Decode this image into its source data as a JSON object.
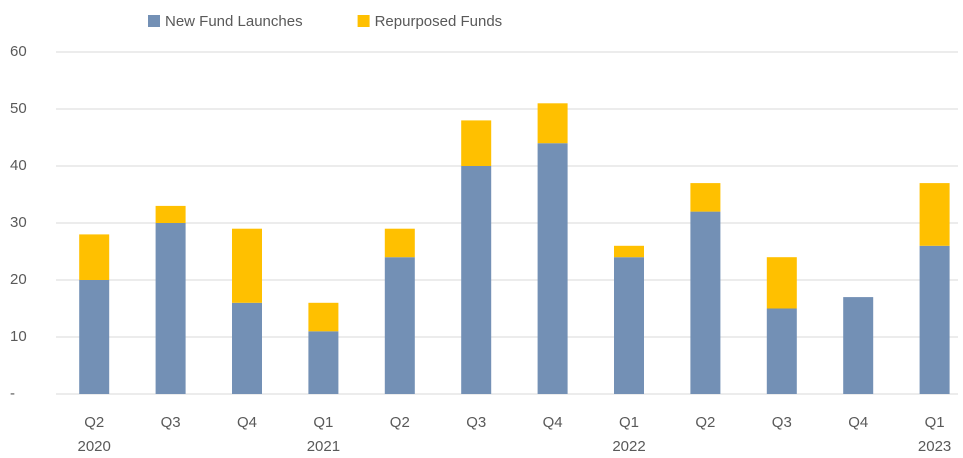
{
  "chart_data": {
    "type": "stacked_bar",
    "categories": [
      "Q2",
      "Q3",
      "Q4",
      "Q1",
      "Q2",
      "Q3",
      "Q4",
      "Q1",
      "Q2",
      "Q3",
      "Q4",
      "Q1"
    ],
    "category_years": [
      "2020",
      null,
      null,
      "2021",
      null,
      null,
      null,
      "2022",
      null,
      null,
      null,
      "2023"
    ],
    "series": [
      {
        "name": "New Fund Launches",
        "color": "#7390b5",
        "values": [
          20,
          30,
          16,
          11,
          24,
          40,
          44,
          24,
          32,
          15,
          17,
          26
        ]
      },
      {
        "name": "Repurposed Funds",
        "color": "#ffc000",
        "values": [
          8,
          3,
          13,
          5,
          5,
          8,
          7,
          2,
          5,
          9,
          0,
          11
        ]
      }
    ],
    "ylim": [
      0,
      60
    ],
    "yticks": [
      {
        "value": 0,
        "label": "-"
      },
      10,
      20,
      30,
      40,
      50,
      60
    ],
    "grid": true,
    "legend": "top"
  }
}
